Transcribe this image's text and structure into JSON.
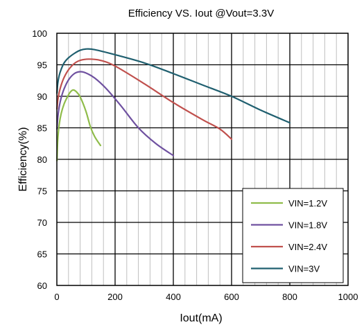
{
  "chart_data": {
    "type": "line",
    "title": "Efficiency VS. Iout @Vout=3.3V",
    "xlabel": "Iout(mA)",
    "ylabel": "Efficiency(%)",
    "xlim": [
      0,
      1000
    ],
    "ylim": [
      60,
      100
    ],
    "xticks": [
      0,
      200,
      400,
      600,
      800,
      1000
    ],
    "yticks": [
      60,
      65,
      70,
      75,
      80,
      85,
      90,
      95,
      100
    ],
    "x_grid": "major every 200, minor every 40",
    "y_grid": "every 5",
    "legend_position": "bottom-right",
    "series": [
      {
        "name": "VIN=1.2V",
        "color": "#8fbc4a",
        "x": [
          0.5,
          3,
          8,
          15,
          25,
          35,
          45,
          55,
          65,
          80,
          100,
          115,
          130,
          150
        ],
        "y": [
          79.8,
          83,
          85.5,
          87.3,
          88.8,
          89.8,
          90.6,
          91.0,
          90.8,
          89.9,
          87.6,
          85.2,
          83.6,
          82.2
        ]
      },
      {
        "name": "VIN=1.8V",
        "color": "#6f51a0",
        "x": [
          0.5,
          3,
          8,
          15,
          25,
          40,
          60,
          80,
          100,
          130,
          170,
          220,
          280,
          340,
          400
        ],
        "y": [
          84.8,
          86.5,
          88.3,
          89.8,
          91.2,
          92.6,
          93.6,
          93.9,
          93.7,
          92.9,
          91.2,
          88.5,
          85.0,
          82.5,
          80.6
        ]
      },
      {
        "name": "VIN=2.4V",
        "color": "#c0504d",
        "x": [
          0.5,
          3,
          8,
          15,
          25,
          40,
          60,
          80,
          110,
          150,
          200,
          300,
          400,
          500,
          560,
          600
        ],
        "y": [
          88.0,
          89.3,
          90.6,
          91.8,
          93.0,
          94.2,
          95.2,
          95.7,
          95.9,
          95.7,
          94.8,
          92.0,
          89.0,
          86.3,
          84.8,
          83.2
        ]
      },
      {
        "name": "VIN=3V",
        "color": "#1f5f6f",
        "x": [
          0.5,
          3,
          8,
          15,
          25,
          40,
          60,
          80,
          100,
          130,
          200,
          300,
          400,
          500,
          600,
          700,
          800
        ],
        "y": [
          90.5,
          92.0,
          93.3,
          94.3,
          95.3,
          96.1,
          96.8,
          97.3,
          97.5,
          97.4,
          96.6,
          95.3,
          93.6,
          91.8,
          90.0,
          87.8,
          85.8
        ]
      }
    ]
  }
}
